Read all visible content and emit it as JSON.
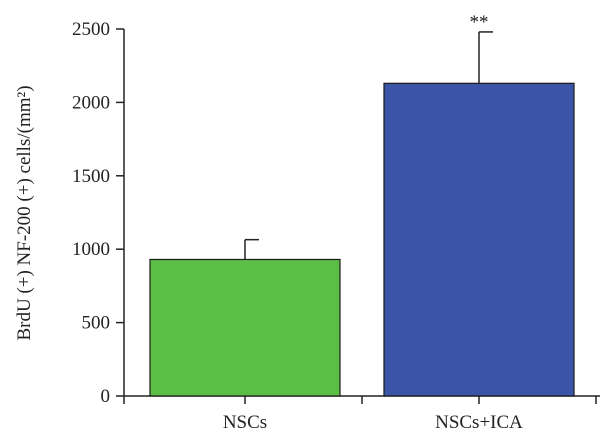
{
  "chart_data": {
    "type": "bar",
    "title": "",
    "xlabel": "",
    "ylabel": "BrdU (+) NF-200 (+) cells/(mm²)",
    "categories": [
      "NSCs",
      "NSCs+ICA"
    ],
    "values": [
      930,
      2130
    ],
    "error_bars": [
      135,
      350
    ],
    "colors": [
      "#5bbf46",
      "#3a55a6"
    ],
    "annotations": [
      "",
      "**"
    ],
    "ylim": [
      0,
      2500
    ],
    "yticks": [
      0,
      500,
      1000,
      1500,
      2000,
      2500
    ],
    "grid": false,
    "legend": "none"
  }
}
